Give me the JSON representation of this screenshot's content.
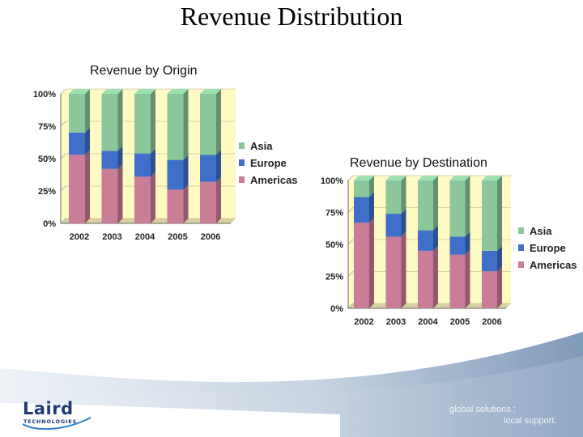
{
  "slide": {
    "title": "Revenue Distribution",
    "logo": {
      "name": "Laird",
      "sub": "TECHNOLOGIES"
    },
    "tagline": [
      "global solutions :",
      "local support."
    ]
  },
  "colors": {
    "asia": "#8cc79c",
    "europe": "#3f6fc9",
    "americas": "#c97d97",
    "plot_bg": "#fff9c4"
  },
  "chart_data": [
    {
      "type": "bar",
      "stacked": true,
      "title": "Revenue by Origin",
      "categories": [
        "2002",
        "2003",
        "2004",
        "2005",
        "2006"
      ],
      "series": [
        {
          "name": "Americas",
          "values": [
            53,
            42,
            36,
            26,
            32
          ]
        },
        {
          "name": "Europe",
          "values": [
            17,
            14,
            18,
            23,
            21
          ]
        },
        {
          "name": "Asia",
          "values": [
            30,
            44,
            46,
            51,
            47
          ]
        }
      ],
      "yticks": [
        "0%",
        "25%",
        "50%",
        "75%",
        "100%"
      ],
      "ylim": [
        0,
        100
      ],
      "legend": [
        "Asia",
        "Europe",
        "Americas"
      ],
      "legend_position": "right"
    },
    {
      "type": "bar",
      "stacked": true,
      "title": "Revenue by Destination",
      "categories": [
        "2002",
        "2003",
        "2004",
        "2005",
        "2006"
      ],
      "series": [
        {
          "name": "Americas",
          "values": [
            67,
            56,
            45,
            42,
            29
          ]
        },
        {
          "name": "Europe",
          "values": [
            20,
            18,
            16,
            14,
            16
          ]
        },
        {
          "name": "Asia",
          "values": [
            13,
            26,
            39,
            44,
            55
          ]
        }
      ],
      "yticks": [
        "0%",
        "25%",
        "50%",
        "75%",
        "100%"
      ],
      "ylim": [
        0,
        100
      ],
      "legend": [
        "Asia",
        "Europe",
        "Americas"
      ],
      "legend_position": "right"
    }
  ]
}
